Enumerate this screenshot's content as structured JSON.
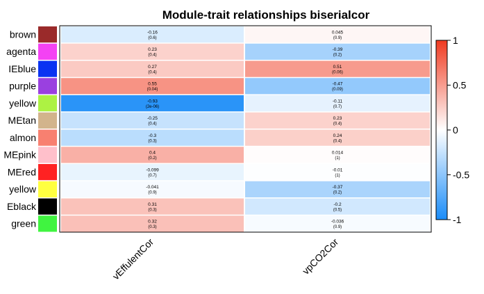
{
  "chart_data": {
    "type": "heatmap",
    "title": "Module-trait relationships biserialcor",
    "columns": [
      "vEffulentCor",
      "vpCO2Cor"
    ],
    "rows": [
      {
        "label": "brown",
        "color": "#9A2A2A",
        "cells": [
          {
            "value": "-0.16",
            "p": "(0.6)"
          },
          {
            "value": "0.045",
            "p": "(0.9)"
          }
        ]
      },
      {
        "label": "agenta",
        "color": "#F442F4",
        "cells": [
          {
            "value": "0.23",
            "p": "(0.4)"
          },
          {
            "value": "-0.39",
            "p": "(0.2)"
          }
        ]
      },
      {
        "label": "IEblue",
        "color": "#0A33F2",
        "cells": [
          {
            "value": "0.27",
            "p": "(0.4)"
          },
          {
            "value": "0.51",
            "p": "(0.06)"
          }
        ]
      },
      {
        "label": "purple",
        "color": "#9A40E0",
        "cells": [
          {
            "value": "0.55",
            "p": "(0.04)"
          },
          {
            "value": "-0.47",
            "p": "(0.09)"
          }
        ]
      },
      {
        "label": "yellow",
        "color": "#ADF243",
        "cells": [
          {
            "value": "-0.93",
            "p": "(2e-06)"
          },
          {
            "value": "-0.11",
            "p": "(0.7)"
          }
        ]
      },
      {
        "label": "MEtan",
        "color": "#D2B48C",
        "cells": [
          {
            "value": "-0.25",
            "p": "(0.4)"
          },
          {
            "value": "0.23",
            "p": "(0.4)"
          }
        ]
      },
      {
        "label": "almon",
        "color": "#F88070",
        "cells": [
          {
            "value": "-0.3",
            "p": "(0.3)"
          },
          {
            "value": "0.24",
            "p": "(0.4)"
          }
        ]
      },
      {
        "label": "MEpink",
        "color": "#FFC0CB",
        "cells": [
          {
            "value": "0.4",
            "p": "(0.2)"
          },
          {
            "value": "0.014",
            "p": "(1)"
          }
        ]
      },
      {
        "label": "MEred",
        "color": "#FF2222",
        "cells": [
          {
            "value": "-0.099",
            "p": "(0.7)"
          },
          {
            "value": "-0.01",
            "p": "(1)"
          }
        ]
      },
      {
        "label": "yellow",
        "color": "#FFFF40",
        "cells": [
          {
            "value": "-0.041",
            "p": "(0.9)"
          },
          {
            "value": "-0.37",
            "p": "(0.2)"
          }
        ]
      },
      {
        "label": "Eblack",
        "color": "#000000",
        "cells": [
          {
            "value": "0.31",
            "p": "(0.3)"
          },
          {
            "value": "-0.2",
            "p": "(0.5)"
          }
        ]
      },
      {
        "label": "green",
        "color": "#40F440",
        "cells": [
          {
            "value": "0.32",
            "p": "(0.3)"
          },
          {
            "value": "-0.036",
            "p": "(0.9)"
          }
        ]
      }
    ],
    "color_scale": {
      "min": -1,
      "max": 1,
      "low": "#1A8CF8",
      "mid": "#FFFFFF",
      "high": "#F03A20"
    },
    "legend": {
      "ticks": [
        "1",
        "0.5",
        "0",
        "-0.5",
        "-1"
      ],
      "tick_values": [
        1,
        0.5,
        0,
        -0.5,
        -1
      ],
      "placement": "right"
    }
  }
}
